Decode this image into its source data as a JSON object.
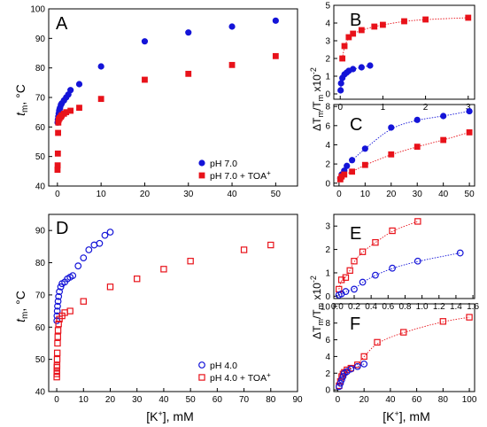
{
  "colors": {
    "blue": "#1414d8",
    "red": "#e8121a",
    "axis": "#000000"
  },
  "labels": {
    "ylabel_left_main": "t",
    "ylabel_left_sub": "m",
    "ylabel_left_unit": ", °C",
    "ylabel_right_main": "ΔT",
    "ylabel_right_sub": "m",
    "ylabel_right_mid": "/T",
    "ylabel_right_sub2": "m",
    "ylabel_right_tail": " x10",
    "ylabel_right_exp": "-2",
    "xlabel_main": "[K",
    "xlabel_sup": "+",
    "xlabel_tail": "], mM"
  },
  "chart_data": [
    {
      "panel": "A",
      "type": "scatter",
      "xlim": [
        -2,
        55
      ],
      "ylim": [
        40,
        100
      ],
      "xticks": [
        "0",
        "10",
        "20",
        "30",
        "40",
        "50"
      ],
      "yticks": [
        "40",
        "50",
        "60",
        "70",
        "80",
        "90",
        "100"
      ],
      "legend_position": "bottom-right",
      "series": [
        {
          "name": "pH 7.0",
          "color": "blue",
          "marker": "circle-filled",
          "x": [
            0.05,
            0.1,
            0.2,
            0.3,
            0.4,
            0.5,
            0.6,
            0.8,
            1.0,
            1.5,
            2.0,
            2.5,
            3.0,
            5.0,
            10,
            20,
            30,
            40,
            50
          ],
          "y": [
            61.5,
            62.5,
            63.5,
            64.5,
            65.5,
            66,
            66.5,
            67.5,
            68,
            69,
            70,
            71,
            72.5,
            74.5,
            80.5,
            89,
            92,
            94,
            96
          ]
        },
        {
          "name": "pH 7.0 + TOA",
          "name_sup": "+",
          "color": "red",
          "marker": "square-filled",
          "x": [
            0.02,
            0.05,
            0.1,
            0.15,
            0.2,
            0.3,
            0.5,
            0.8,
            1.0,
            1.5,
            2.0,
            3.0,
            5.0,
            10,
            20,
            30,
            40,
            50
          ],
          "y": [
            45.5,
            47,
            51,
            58,
            61.5,
            62.5,
            63,
            63.5,
            64,
            64.5,
            65,
            65.5,
            66.5,
            69.5,
            76,
            78,
            81,
            84
          ]
        }
      ]
    },
    {
      "panel": "B",
      "type": "scatter",
      "xlim": [
        -0.15,
        3.15
      ],
      "ylim": [
        -0.3,
        5.0
      ],
      "xticks": [
        "0",
        "1",
        "2",
        "3"
      ],
      "yticks": [
        "0",
        "1",
        "2",
        "3",
        "4",
        "5"
      ],
      "series": [
        {
          "color": "red",
          "marker": "square-filled",
          "x": [
            0.05,
            0.1,
            0.2,
            0.3,
            0.5,
            0.8,
            1.0,
            1.5,
            2.0,
            3.0
          ],
          "y": [
            2.0,
            2.7,
            3.2,
            3.4,
            3.6,
            3.8,
            3.9,
            4.1,
            4.2,
            4.3
          ]
        },
        {
          "color": "blue",
          "marker": "circle-filled",
          "x": [
            0.01,
            0.02,
            0.05,
            0.1,
            0.15,
            0.2,
            0.3,
            0.5,
            0.7
          ],
          "y": [
            0.2,
            0.6,
            0.9,
            1.1,
            1.2,
            1.3,
            1.4,
            1.5,
            1.6
          ]
        }
      ]
    },
    {
      "panel": "C",
      "type": "scatter",
      "xlim": [
        -2,
        52
      ],
      "ylim": [
        -0.3,
        8.2
      ],
      "xticks": [
        "0",
        "10",
        "20",
        "30",
        "40",
        "50"
      ],
      "yticks": [
        "0",
        "2",
        "4",
        "6",
        "8"
      ],
      "series": [
        {
          "color": "blue",
          "marker": "circle-filled",
          "x": [
            0.5,
            1,
            2,
            3,
            5,
            10,
            20,
            30,
            40,
            50
          ],
          "y": [
            0.5,
            0.9,
            1.3,
            1.8,
            2.4,
            3.6,
            5.8,
            6.6,
            7.0,
            7.5
          ]
        },
        {
          "color": "red",
          "marker": "square-filled",
          "x": [
            0.5,
            1,
            2,
            5,
            10,
            20,
            30,
            40,
            50
          ],
          "y": [
            0.4,
            0.7,
            0.9,
            1.2,
            1.9,
            3.0,
            3.8,
            4.5,
            5.3
          ]
        }
      ]
    },
    {
      "panel": "D",
      "type": "scatter",
      "xlim": [
        -3,
        90
      ],
      "ylim": [
        40,
        95
      ],
      "xticks": [
        "0",
        "10",
        "20",
        "30",
        "40",
        "50",
        "60",
        "70",
        "80",
        "90"
      ],
      "yticks": [
        "40",
        "50",
        "60",
        "70",
        "80",
        "90"
      ],
      "legend_position": "bottom-right",
      "series": [
        {
          "name": "pH 4.0",
          "color": "blue",
          "marker": "circle-open",
          "x": [
            0.05,
            0.1,
            0.2,
            0.3,
            0.5,
            0.7,
            1.0,
            1.5,
            2.0,
            3.0,
            4.0,
            5.0,
            6.0,
            8.0,
            10,
            12,
            14,
            16,
            18,
            20
          ],
          "y": [
            62,
            63.5,
            65,
            66.5,
            68,
            69.5,
            71,
            72.5,
            73.5,
            74,
            75,
            75.5,
            76,
            79,
            81.5,
            84,
            85.5,
            86,
            88.5,
            89.5
          ]
        },
        {
          "name": "pH 4.0 + TOA",
          "name_sup": "+",
          "color": "red",
          "marker": "square-open",
          "x": [
            0.02,
            0.04,
            0.06,
            0.08,
            0.1,
            0.15,
            0.2,
            0.3,
            0.4,
            0.5,
            0.7,
            1.0,
            2.0,
            3.0,
            5.0,
            10,
            20,
            30,
            40,
            50,
            70,
            80
          ],
          "y": [
            44.5,
            45.5,
            46.5,
            47.5,
            48,
            50,
            52,
            55,
            57,
            59,
            61,
            62.5,
            63.5,
            64.5,
            65,
            68,
            72.5,
            75,
            78,
            80.5,
            84,
            85.5
          ]
        }
      ]
    },
    {
      "panel": "E",
      "type": "scatter",
      "xlim": [
        -0.04,
        1.62
      ],
      "ylim": [
        -0.1,
        3.5
      ],
      "xticks": [
        "0.0",
        "0.2",
        "0.4",
        "0.6",
        "0.8",
        "1.0",
        "1.2",
        "1.4",
        "1.6"
      ],
      "yticks": [
        "0",
        "1",
        "2",
        "3"
      ],
      "series": [
        {
          "color": "red",
          "marker": "square-open",
          "x": [
            0.02,
            0.05,
            0.1,
            0.15,
            0.2,
            0.3,
            0.45,
            0.65,
            0.95
          ],
          "y": [
            0.3,
            0.7,
            0.8,
            1.1,
            1.5,
            1.9,
            2.3,
            2.8,
            3.2
          ]
        },
        {
          "color": "blue",
          "marker": "circle-open",
          "x": [
            0.02,
            0.05,
            0.1,
            0.2,
            0.3,
            0.45,
            0.65,
            0.95,
            1.45
          ],
          "y": [
            0.05,
            0.1,
            0.2,
            0.3,
            0.6,
            0.9,
            1.2,
            1.5,
            1.85
          ]
        }
      ]
    },
    {
      "panel": "F",
      "type": "scatter",
      "xlim": [
        -3,
        104
      ],
      "ylim": [
        -0.2,
        10.3
      ],
      "xticks": [
        "0",
        "20",
        "40",
        "60",
        "80",
        "100"
      ],
      "yticks": [
        "0",
        "2",
        "4",
        "6",
        "8",
        "10"
      ],
      "series": [
        {
          "color": "red",
          "marker": "square-open",
          "x": [
            1,
            2,
            3,
            4,
            5,
            7,
            10,
            15,
            20,
            30,
            50,
            80,
            100
          ],
          "y": [
            0.5,
            1.0,
            1.6,
            1.9,
            2.1,
            2.4,
            2.6,
            3.0,
            4.0,
            5.7,
            6.9,
            8.2,
            8.7
          ]
        },
        {
          "color": "blue",
          "marker": "circle-open",
          "x": [
            1,
            2,
            3,
            4,
            5,
            7,
            10,
            15,
            20
          ],
          "y": [
            0.4,
            0.8,
            1.2,
            1.6,
            2.0,
            2.2,
            2.5,
            2.8,
            3.1
          ]
        }
      ]
    }
  ]
}
